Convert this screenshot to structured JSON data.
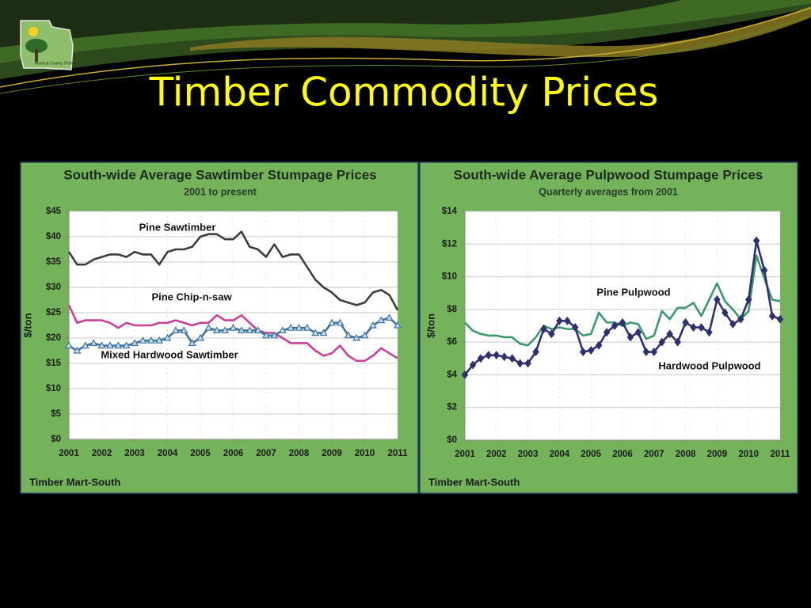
{
  "slide": {
    "title": "Timber Commodity Prices",
    "logo_text": "Alachua County, Florida"
  },
  "chart_data": [
    {
      "type": "line",
      "title": "South-wide Average Sawtimber Stumpage Prices",
      "subtitle": "2001 to present",
      "y_label": "$/ton",
      "source": "Timber Mart-South",
      "grid": true,
      "x": [
        2001,
        2001.25,
        2001.5,
        2001.75,
        2002,
        2002.25,
        2002.5,
        2002.75,
        2003,
        2003.25,
        2003.5,
        2003.75,
        2004,
        2004.25,
        2004.5,
        2004.75,
        2005,
        2005.25,
        2005.5,
        2005.75,
        2006,
        2006.25,
        2006.5,
        2006.75,
        2007,
        2007.25,
        2007.5,
        2007.75,
        2008,
        2008.25,
        2008.5,
        2008.75,
        2009,
        2009.25,
        2009.5,
        2009.75,
        2010,
        2010.25,
        2010.5,
        2010.75,
        2011
      ],
      "xlim": [
        2001,
        2011
      ],
      "xticks": [
        2001,
        2002,
        2003,
        2004,
        2005,
        2006,
        2007,
        2008,
        2009,
        2010,
        2011
      ],
      "ylim": [
        0,
        45
      ],
      "yticks": [
        {
          "value": 0,
          "label": "$0"
        },
        {
          "value": 5,
          "label": "$5"
        },
        {
          "value": 10,
          "label": "$10"
        },
        {
          "value": 15,
          "label": "$15"
        },
        {
          "value": 20,
          "label": "$20"
        },
        {
          "value": 25,
          "label": "$25"
        },
        {
          "value": 30,
          "label": "$30"
        },
        {
          "value": 35,
          "label": "$35"
        },
        {
          "value": 40,
          "label": "$40"
        },
        {
          "value": 45,
          "label": "$45"
        }
      ],
      "series": [
        {
          "name": "Pine Sawtimber",
          "color": "#3b3d3e",
          "marker": null,
          "values": [
            37,
            34.5,
            34.5,
            35.5,
            36,
            36.5,
            36.5,
            36,
            37,
            36.5,
            36.5,
            34.5,
            37,
            37.5,
            37.5,
            38,
            40,
            40.5,
            40.5,
            39.5,
            39.5,
            41,
            38,
            37.5,
            36,
            38.5,
            36,
            36.5,
            36.5,
            34,
            31.5,
            30,
            29,
            27.5,
            27,
            26.5,
            27,
            29,
            29.5,
            28.5,
            25.5
          ]
        },
        {
          "name": "Pine Chip-n-saw",
          "color": "#c8409a",
          "marker": null,
          "values": [
            26.5,
            23,
            23.5,
            23.5,
            23.5,
            23,
            22,
            23,
            22.5,
            22.5,
            22.5,
            23,
            23,
            23.5,
            23,
            22.5,
            23,
            23,
            24.5,
            23.5,
            23.5,
            24.5,
            23,
            21.5,
            21,
            21,
            20,
            19,
            19,
            19,
            17.5,
            16.5,
            17,
            18.5,
            16.5,
            15.5,
            15.5,
            16.5,
            18,
            17,
            16
          ]
        },
        {
          "name": "Mixed Hardwood Sawtimber",
          "color": "#3f74a0",
          "marker": "triangle",
          "values": [
            18.5,
            17.5,
            18.5,
            19,
            18.5,
            18.5,
            18.5,
            18.5,
            19,
            19.5,
            19.5,
            19.5,
            20,
            21.5,
            21.5,
            19,
            20,
            22,
            21.5,
            21.5,
            22,
            21.5,
            21.5,
            21.5,
            20.5,
            20.5,
            21.5,
            22,
            22,
            22,
            21,
            21,
            23,
            23,
            20.5,
            20,
            20.5,
            22.5,
            23.5,
            24,
            22.5
          ]
        }
      ]
    },
    {
      "type": "line",
      "title": "South-wide Average Pulpwood Stumpage Prices",
      "subtitle": "Quarterly averages from 2001",
      "y_label": "$/ton",
      "source": "Timber Mart-South",
      "grid": true,
      "x": [
        2001,
        2001.25,
        2001.5,
        2001.75,
        2002,
        2002.25,
        2002.5,
        2002.75,
        2003,
        2003.25,
        2003.5,
        2003.75,
        2004,
        2004.25,
        2004.5,
        2004.75,
        2005,
        2005.25,
        2005.5,
        2005.75,
        2006,
        2006.25,
        2006.5,
        2006.75,
        2007,
        2007.25,
        2007.5,
        2007.75,
        2008,
        2008.25,
        2008.5,
        2008.75,
        2009,
        2009.25,
        2009.5,
        2009.75,
        2010,
        2010.25,
        2010.5,
        2010.75,
        2011
      ],
      "xlim": [
        2001,
        2011
      ],
      "xticks": [
        2001,
        2002,
        2003,
        2004,
        2005,
        2006,
        2007,
        2008,
        2009,
        2010,
        2011
      ],
      "ylim": [
        0,
        14
      ],
      "yticks": [
        {
          "value": 0,
          "label": "$0"
        },
        {
          "value": 2,
          "label": "$2"
        },
        {
          "value": 4,
          "label": "$4"
        },
        {
          "value": 6,
          "label": "$6"
        },
        {
          "value": 8,
          "label": "$8"
        },
        {
          "value": 10,
          "label": "$10"
        },
        {
          "value": 12,
          "label": "$12"
        },
        {
          "value": 14,
          "label": "$14"
        }
      ],
      "series": [
        {
          "name": "Pine Pulpwood",
          "color": "#3a9a6c",
          "marker": null,
          "values": [
            7.2,
            6.7,
            6.5,
            6.4,
            6.4,
            6.3,
            6.3,
            5.9,
            5.8,
            6.3,
            7,
            6.8,
            6.9,
            6.8,
            6.8,
            6.4,
            6.5,
            7.8,
            7.2,
            7.2,
            7,
            7.2,
            7.1,
            6.2,
            6.4,
            7.9,
            7.4,
            8.1,
            8.1,
            8.4,
            7.6,
            8.6,
            9.6,
            8.5,
            8,
            7.4,
            7.9,
            11.3,
            9.9,
            8.6,
            8.5
          ]
        },
        {
          "name": "Hardwood Pulpwood",
          "color": "#2f3070",
          "marker": "diamond",
          "values": [
            4,
            4.6,
            5,
            5.2,
            5.2,
            5.1,
            5,
            4.7,
            4.7,
            5.4,
            6.8,
            6.5,
            7.3,
            7.3,
            6.9,
            5.4,
            5.5,
            5.8,
            6.6,
            7,
            7.2,
            6.3,
            6.6,
            5.4,
            5.4,
            6,
            6.5,
            6,
            7.2,
            6.9,
            6.9,
            6.6,
            8.6,
            7.8,
            7.1,
            7.4,
            8.6,
            12.2,
            10.4,
            7.6,
            7.4
          ]
        }
      ]
    }
  ]
}
